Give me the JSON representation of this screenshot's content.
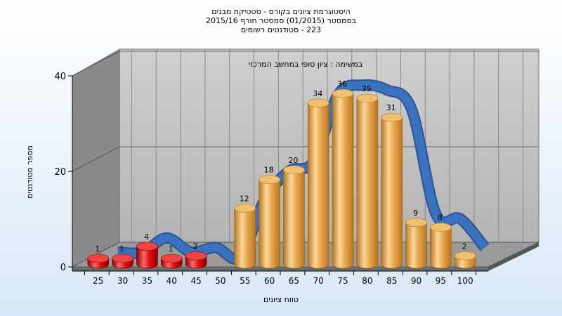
{
  "chart_data": {
    "type": "bar",
    "title_lines": [
      "היסטוגרמת ציונים בקורס - סטטיקת מבנים",
      "בסמסטר (01/2015) סמסטר חורף 2015/16",
      "223 - סטודנטים רשומים"
    ],
    "annotation": "במשימה : ציון סופי במחשב המרכזי",
    "xlabel": "טווח ציונים",
    "ylabel": "מספר סטודנטים",
    "categories": [
      "25",
      "30",
      "35",
      "40",
      "45",
      "50",
      "55",
      "60",
      "65",
      "70",
      "75",
      "80",
      "85",
      "90",
      "95",
      "100"
    ],
    "series": [
      {
        "values": [
          1,
          1,
          4,
          1,
          2,
          0,
          12,
          18,
          20,
          34,
          36,
          35,
          31,
          9,
          8,
          2
        ],
        "colors": [
          "#dd1111",
          "#dd1111",
          "#dd1111",
          "#dd1111",
          "#dd1111",
          "#dd1111",
          "#e8a850",
          "#e8a850",
          "#e8a850",
          "#e8a850",
          "#e8a850",
          "#e8a850",
          "#e8a850",
          "#e8a850",
          "#e8a850",
          "#e8a850"
        ],
        "data_labels": [
          "1",
          "1",
          "4",
          "1",
          "2",
          "",
          "12",
          "18",
          "20",
          "34",
          "36",
          "35",
          "31",
          "9",
          "8",
          "2"
        ]
      }
    ],
    "yticks": [
      "0",
      "20",
      "40"
    ],
    "ylim": [
      0,
      40
    ],
    "grid": true,
    "curve_color": "#3a72c0",
    "wall_color": "#c0c0c0",
    "side_wall_color": "#8a8a8a"
  }
}
